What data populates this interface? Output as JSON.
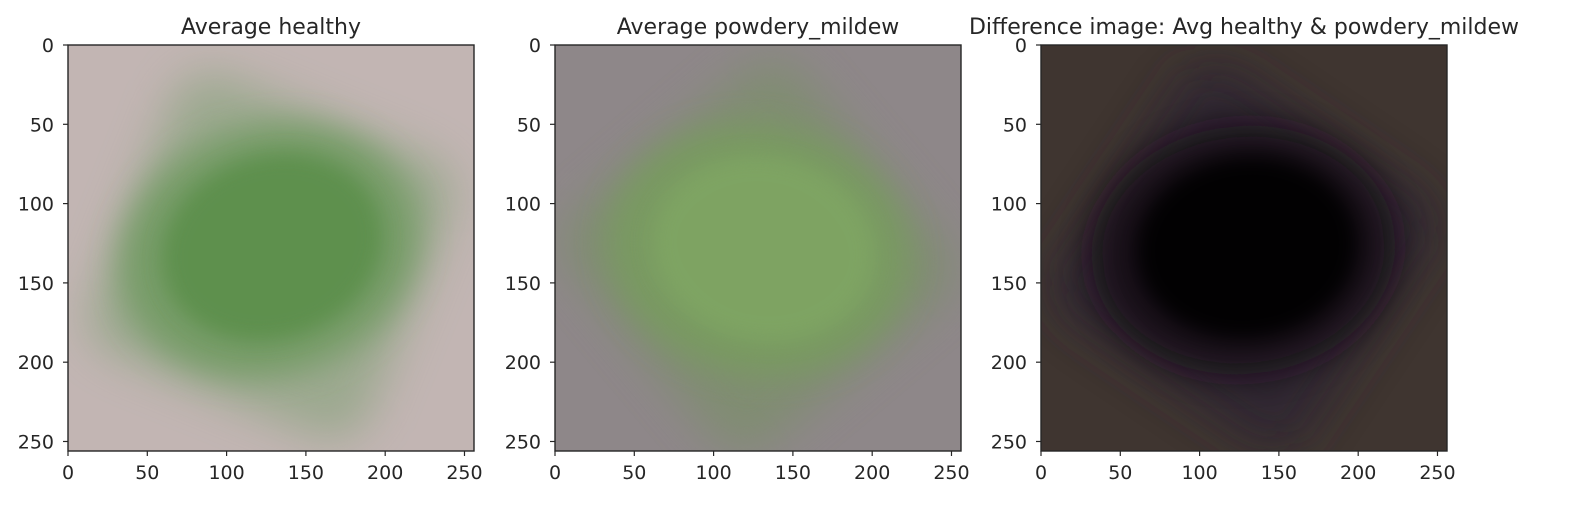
{
  "chart_data": [
    {
      "type": "image",
      "title": "Average healthy",
      "xlim": [
        0,
        256
      ],
      "ylim": [
        256,
        0
      ],
      "xticks": [
        0,
        50,
        100,
        150,
        200,
        250
      ],
      "yticks": [
        0,
        50,
        100,
        150,
        200,
        250
      ],
      "grid": false,
      "colors": {
        "background": "#c2b5b3",
        "blob_outer": "#8fa583",
        "blob_mid": "#6f9a60",
        "blob_core": "#5b8f4c"
      }
    },
    {
      "type": "image",
      "title": "Average powdery_mildew",
      "xlim": [
        0,
        256
      ],
      "ylim": [
        256,
        0
      ],
      "xticks": [
        0,
        50,
        100,
        150,
        200,
        250
      ],
      "yticks": [
        0,
        50,
        100,
        150,
        200,
        250
      ],
      "grid": false,
      "colors": {
        "background": "#8e8789",
        "blob_outer": "#7c8f6b",
        "blob_mid": "#789c5e",
        "blob_core": "#7fa564"
      }
    },
    {
      "type": "image",
      "title": "Difference image: Avg healthy & powdery_mildew",
      "xlim": [
        0,
        256
      ],
      "ylim": [
        256,
        0
      ],
      "xticks": [
        0,
        50,
        100,
        150,
        200,
        250
      ],
      "yticks": [
        0,
        50,
        100,
        150,
        200,
        250
      ],
      "grid": false,
      "colors": {
        "background": "#3f3530",
        "blob_outer": "#2a2230",
        "blob_mid": "#120e12",
        "blob_core": "#050505"
      }
    }
  ]
}
